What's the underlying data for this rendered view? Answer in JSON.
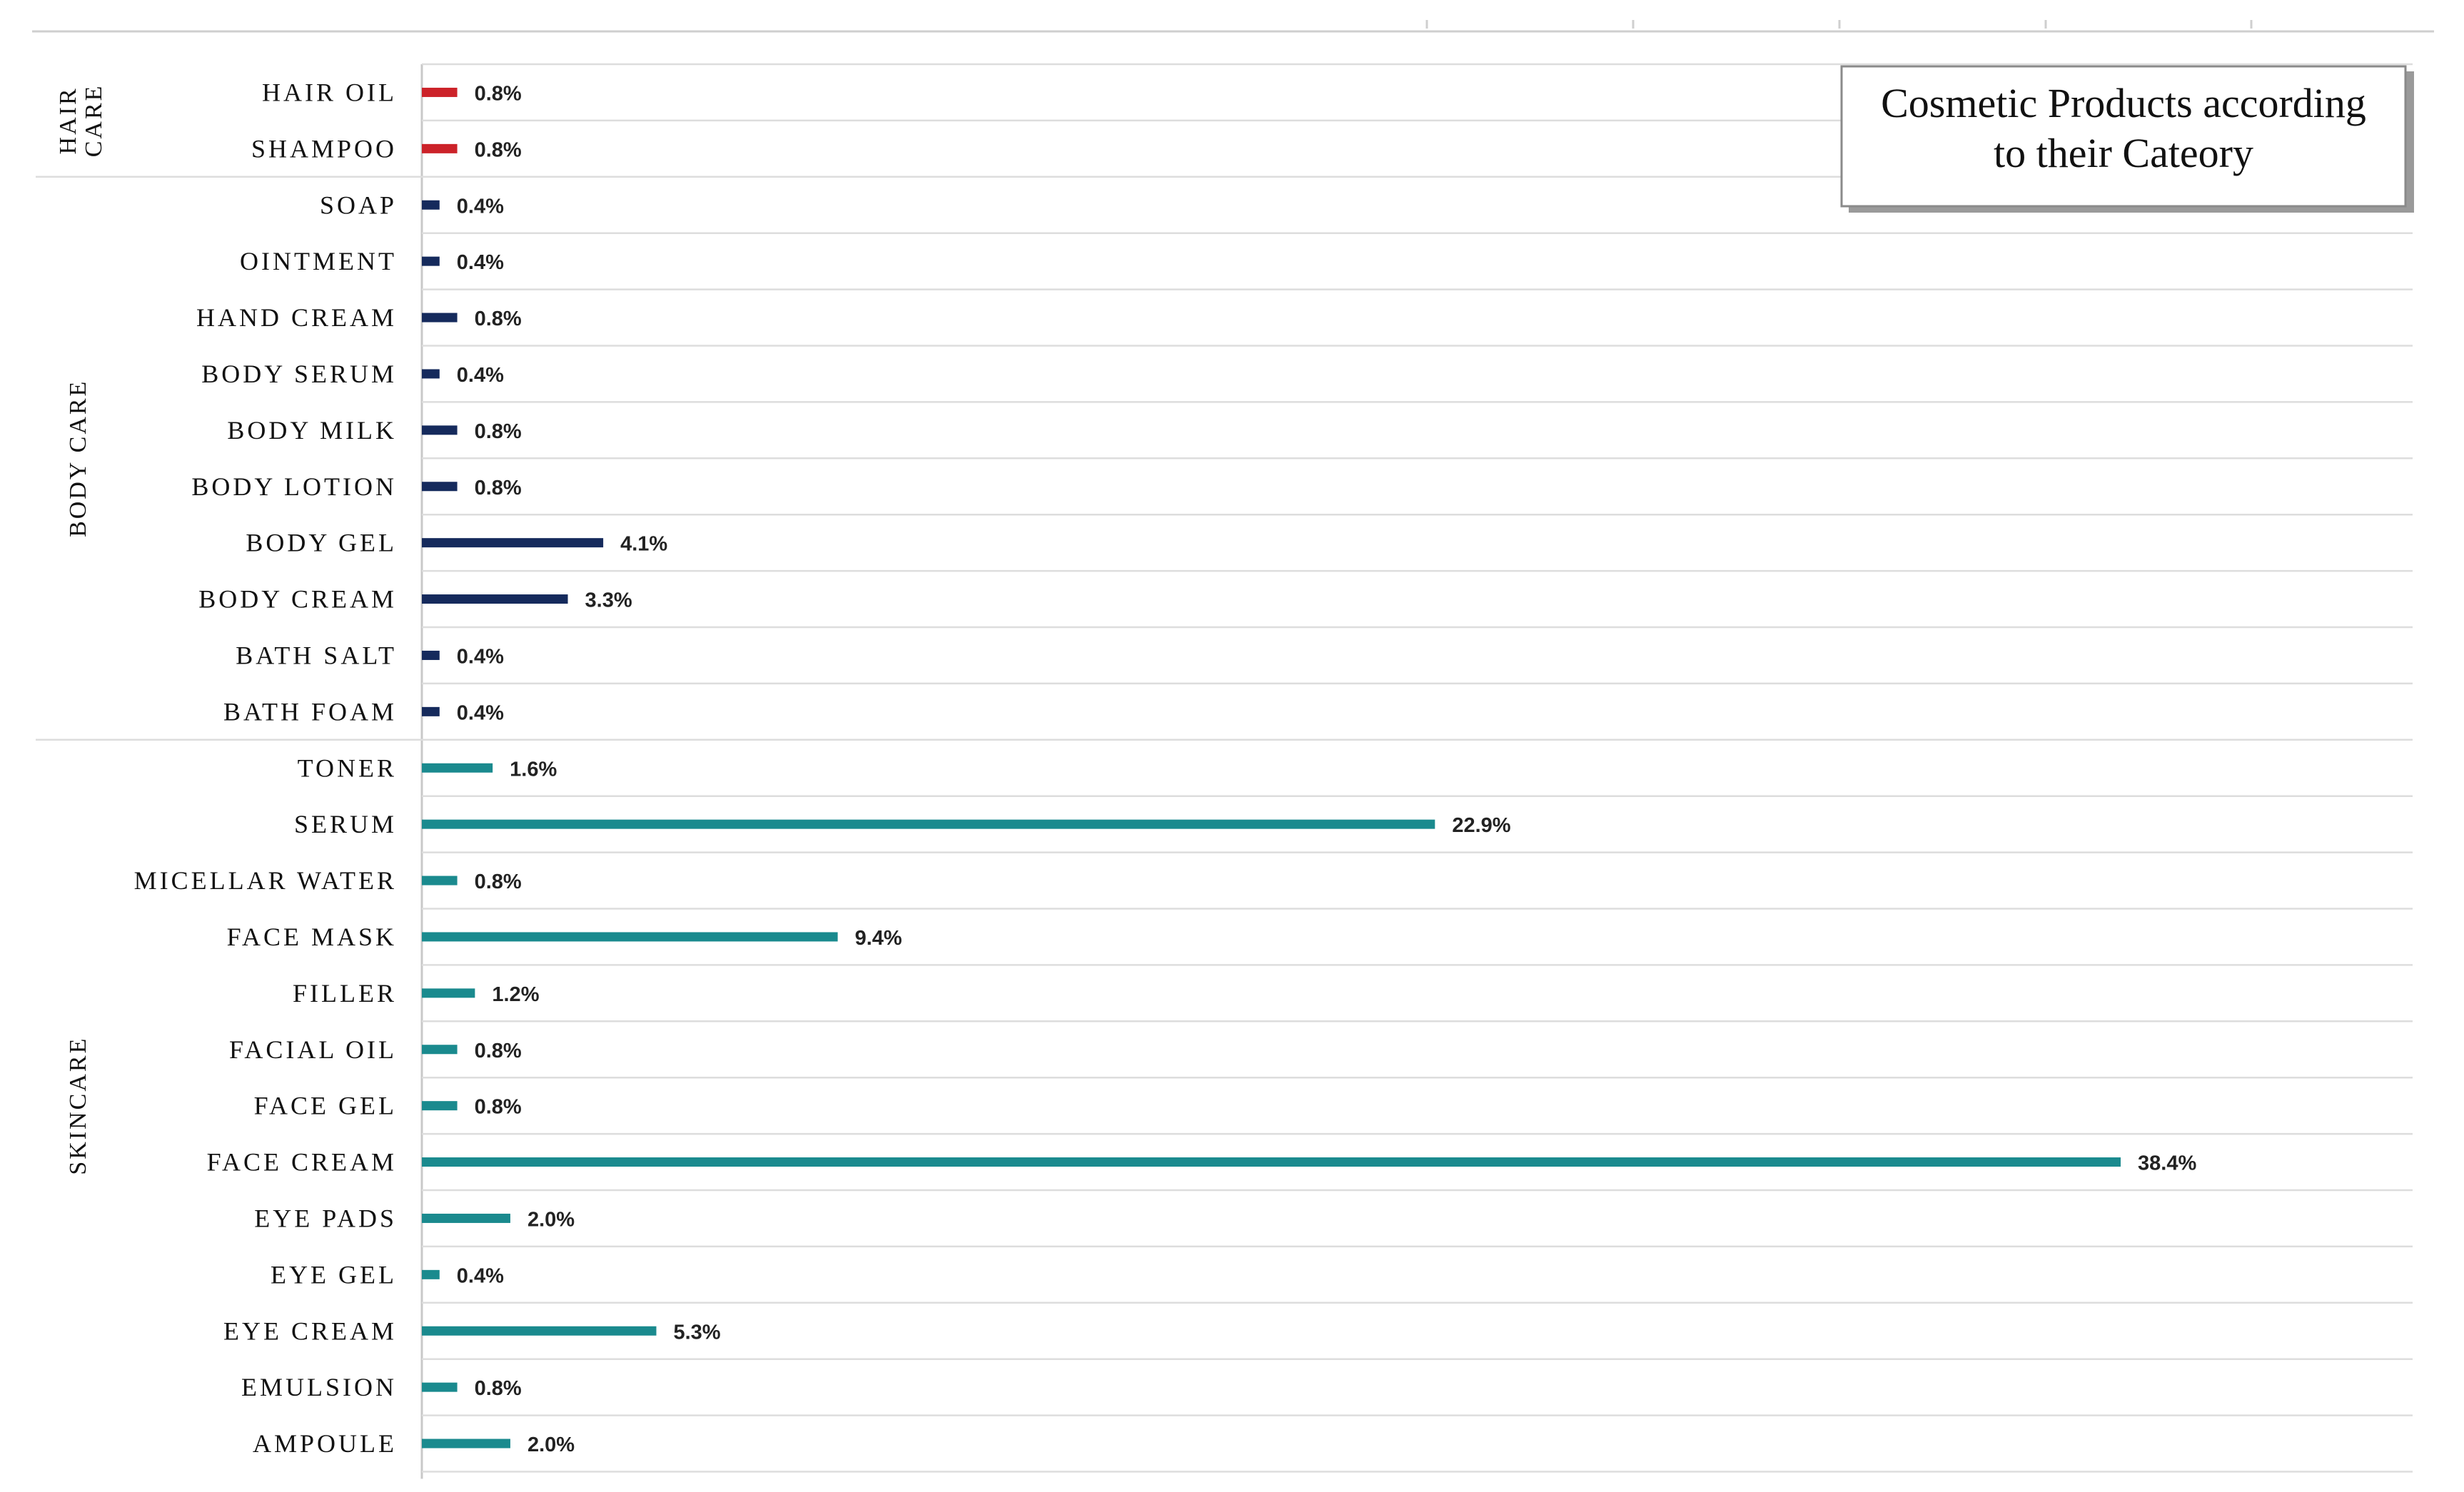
{
  "chart_data": {
    "type": "bar",
    "orientation": "horizontal",
    "title_lines": [
      "Cosmetic Products according",
      "to their Cateory"
    ],
    "xlim": [
      0,
      38.4
    ],
    "value_suffix": "%",
    "grid": true,
    "groups": [
      {
        "label_lines": [
          "HAIR",
          "CARE"
        ],
        "color": "#cc2229",
        "items": [
          {
            "label": "HAIR OIL",
            "value": 0.8,
            "value_label": "0.8%"
          },
          {
            "label": "SHAMPOO",
            "value": 0.8,
            "value_label": "0.8%"
          }
        ]
      },
      {
        "label_lines": [
          "BODY CARE"
        ],
        "color": "#152a5c",
        "items": [
          {
            "label": "SOAP",
            "value": 0.4,
            "value_label": "0.4%"
          },
          {
            "label": "OINTMENT",
            "value": 0.4,
            "value_label": "0.4%"
          },
          {
            "label": "HAND CREAM",
            "value": 0.8,
            "value_label": "0.8%"
          },
          {
            "label": "BODY SERUM",
            "value": 0.4,
            "value_label": "0.4%"
          },
          {
            "label": "BODY MILK",
            "value": 0.8,
            "value_label": "0.8%"
          },
          {
            "label": "BODY LOTION",
            "value": 0.8,
            "value_label": "0.8%"
          },
          {
            "label": "BODY GEL",
            "value": 4.1,
            "value_label": "4.1%"
          },
          {
            "label": "BODY CREAM",
            "value": 3.3,
            "value_label": "3.3%"
          },
          {
            "label": "BATH SALT",
            "value": 0.4,
            "value_label": "0.4%"
          },
          {
            "label": "BATH FOAM",
            "value": 0.4,
            "value_label": "0.4%"
          }
        ]
      },
      {
        "label_lines": [
          "SKINCARE"
        ],
        "color": "#1a8a8e",
        "items": [
          {
            "label": "TONER",
            "value": 1.6,
            "value_label": "1.6%"
          },
          {
            "label": "SERUM",
            "value": 22.9,
            "value_label": "22.9%"
          },
          {
            "label": "MICELLAR WATER",
            "value": 0.8,
            "value_label": "0.8%"
          },
          {
            "label": "FACE MASK",
            "value": 9.4,
            "value_label": "9.4%"
          },
          {
            "label": "FILLER",
            "value": 1.2,
            "value_label": "1.2%"
          },
          {
            "label": "FACIAL OIL",
            "value": 0.8,
            "value_label": "0.8%"
          },
          {
            "label": "FACE GEL",
            "value": 0.8,
            "value_label": "0.8%"
          },
          {
            "label": "FACE CREAM",
            "value": 38.4,
            "value_label": "38.4%"
          },
          {
            "label": "EYE PADS",
            "value": 2.0,
            "value_label": "2.0%"
          },
          {
            "label": "EYE GEL",
            "value": 0.4,
            "value_label": "0.4%"
          },
          {
            "label": "EYE CREAM",
            "value": 5.3,
            "value_label": "5.3%"
          },
          {
            "label": "EMULSION",
            "value": 0.8,
            "value_label": "0.8%"
          },
          {
            "label": "AMPOULE",
            "value": 2.0,
            "value_label": "2.0%"
          }
        ]
      }
    ]
  }
}
